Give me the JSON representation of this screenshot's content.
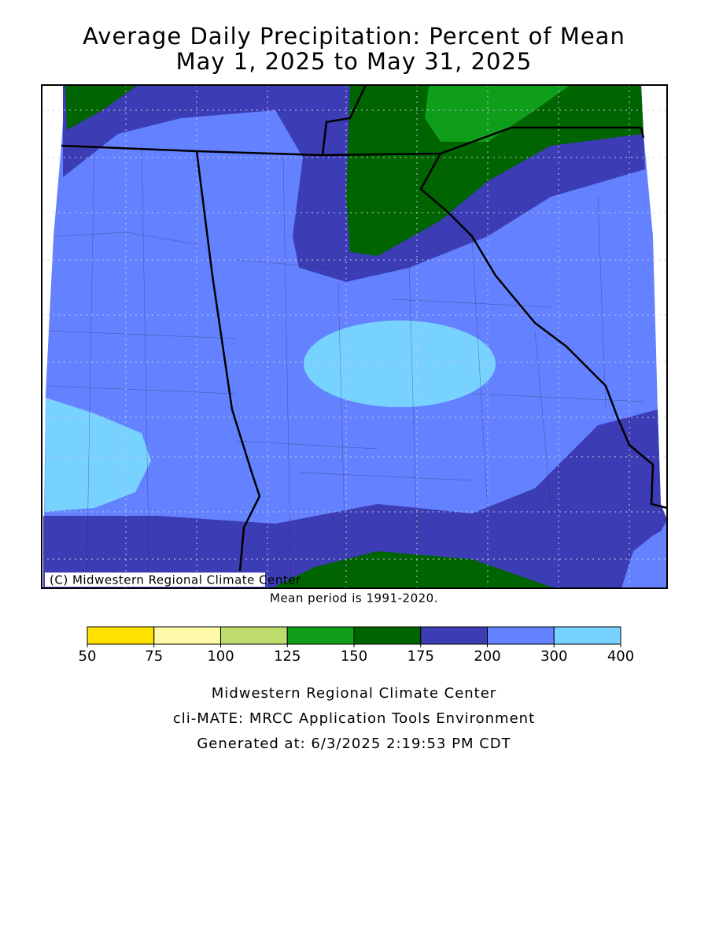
{
  "title": [
    "Average Daily Precipitation: Percent of Mean",
    "May 1, 2025 to May 31, 2025"
  ],
  "map": {
    "credit": "(C) Midwestern Regional Climate Center"
  },
  "note": "Mean period is 1991-2020.",
  "legend": {
    "ticks": [
      50,
      75,
      100,
      125,
      150,
      175,
      200,
      300,
      400
    ],
    "colors": [
      "#ffe100",
      "#fffaaa",
      "#bedc6e",
      "#0f9e19",
      "#006400",
      "#3c3cb4",
      "#6482ff",
      "#78d2ff"
    ]
  },
  "footer": [
    "Midwestern Regional Climate Center",
    "cli-MATE: MRCC Application Tools Environment",
    "Generated at: 6/3/2025 2:19:53 PM CDT"
  ]
}
